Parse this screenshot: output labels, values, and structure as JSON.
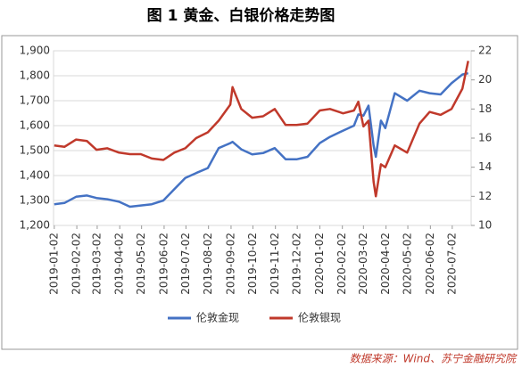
{
  "chart_data": {
    "type": "line",
    "title": "图 1  黄金、白银价格走势图",
    "source": "数据来源：Wind、苏宁金融研究院",
    "legend": "bottom",
    "x": [
      "2019-01-02",
      "2019-01-16",
      "2019-02-01",
      "2019-02-16",
      "2019-03-01",
      "2019-03-16",
      "2019-04-01",
      "2019-04-16",
      "2019-05-01",
      "2019-05-16",
      "2019-06-01",
      "2019-06-16",
      "2019-07-01",
      "2019-07-16",
      "2019-08-01",
      "2019-08-16",
      "2019-09-01",
      "2019-09-04",
      "2019-09-16",
      "2019-10-01",
      "2019-10-16",
      "2019-11-01",
      "2019-11-16",
      "2019-12-01",
      "2019-12-16",
      "2020-01-02",
      "2020-01-16",
      "2020-02-03",
      "2020-02-18",
      "2020-02-24",
      "2020-03-02",
      "2020-03-09",
      "2020-03-16",
      "2020-03-19",
      "2020-03-26",
      "2020-04-01",
      "2020-04-14",
      "2020-05-01",
      "2020-05-18",
      "2020-06-01",
      "2020-06-16",
      "2020-07-01",
      "2020-07-16",
      "2020-07-24"
    ],
    "xlim": [
      "2019-01-01",
      "2020-07-28"
    ],
    "xticks": [
      "2019-01-02",
      "2019-02-02",
      "2019-03-02",
      "2019-04-02",
      "2019-05-02",
      "2019-06-02",
      "2019-07-02",
      "2019-08-02",
      "2019-09-02",
      "2019-10-02",
      "2019-11-02",
      "2019-12-02",
      "2020-01-02",
      "2020-02-02",
      "2020-03-02",
      "2020-04-02",
      "2020-05-02",
      "2020-06-02",
      "2020-07-02"
    ],
    "ylim": [
      1200,
      1900
    ],
    "yticks": [
      {
        "value": 1200,
        "label": "1,200"
      },
      {
        "value": 1300,
        "label": "1,300"
      },
      {
        "value": 1400,
        "label": "1,400"
      },
      {
        "value": 1500,
        "label": "1,500"
      },
      {
        "value": 1600,
        "label": "1,600"
      },
      {
        "value": 1700,
        "label": "1,700"
      },
      {
        "value": 1800,
        "label": "1,800"
      },
      {
        "value": 1900,
        "label": "1,900"
      }
    ],
    "y2lim": [
      10,
      22
    ],
    "y2ticks": [
      10,
      12,
      14,
      16,
      18,
      20,
      22
    ],
    "series": [
      {
        "name": "伦敦金现",
        "color": "#4472c4",
        "values": [
          1285,
          1290,
          1315,
          1320,
          1310,
          1305,
          1295,
          1275,
          1280,
          1285,
          1300,
          1345,
          1390,
          1410,
          1430,
          1510,
          1530,
          1535,
          1505,
          1485,
          1490,
          1510,
          1465,
          1465,
          1475,
          1530,
          1555,
          1580,
          1600,
          1645,
          1640,
          1680,
          1520,
          1475,
          1620,
          1590,
          1730,
          1700,
          1740,
          1730,
          1725,
          1770,
          1805,
          1810
        ]
      },
      {
        "name": "伦敦银现",
        "color": "#c0392b",
        "axis": "y2",
        "values": [
          15.5,
          15.4,
          15.9,
          15.8,
          15.2,
          15.3,
          15.0,
          14.9,
          14.9,
          14.6,
          14.5,
          15.0,
          15.3,
          16.0,
          16.4,
          17.2,
          18.3,
          19.5,
          18.0,
          17.4,
          17.5,
          18.0,
          16.9,
          16.9,
          17.0,
          17.9,
          18.0,
          17.7,
          17.9,
          18.5,
          16.8,
          17.2,
          13.0,
          12.0,
          14.2,
          14.0,
          15.5,
          15.0,
          17.0,
          17.8,
          17.6,
          18.0,
          19.4,
          21.3
        ]
      }
    ]
  }
}
